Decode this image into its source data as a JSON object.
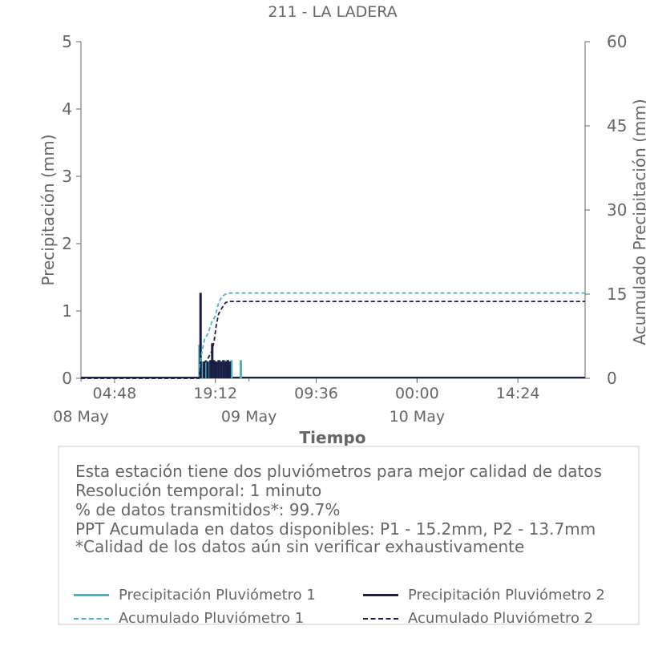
{
  "chart_data": {
    "type": "bar",
    "title": "211 - LA LADERA",
    "xlabel": "Tiempo",
    "ylabel_left": "Precipitación (mm)",
    "ylabel_right": "Acumulado Precipitación (mm)",
    "ylim_left": [
      0,
      5
    ],
    "ylim_right": [
      0,
      60
    ],
    "yticks_left": [
      "0",
      "1",
      "2",
      "3",
      "4",
      "5"
    ],
    "yticks_right": [
      "0",
      "15",
      "30",
      "45",
      "60"
    ],
    "x_range": [
      "2024-05-08T00:00",
      "2024-05-11T00:00"
    ],
    "xticks_time": [
      {
        "t": "2024-05-08T04:48",
        "label": "04:48"
      },
      {
        "t": "2024-05-08T19:12",
        "label": "19:12"
      },
      {
        "t": "2024-05-09T09:36",
        "label": "09:36"
      },
      {
        "t": "2024-05-10T00:00",
        "label": "00:00"
      },
      {
        "t": "2024-05-10T14:24",
        "label": "14:24"
      }
    ],
    "xticks_date": [
      {
        "t": "2024-05-08T00:00",
        "label": "08 May"
      },
      {
        "t": "2024-05-09T00:00",
        "label": "09 May"
      },
      {
        "t": "2024-05-10T00:00",
        "label": "10 May"
      }
    ],
    "series": [
      {
        "name": "Precipitación Pluviómetro 1",
        "kind": "bar",
        "color": "#4fb3bf",
        "points": [
          [
            "2024-05-08T16:55",
            0.5
          ],
          [
            "2024-05-08T17:20",
            0.25
          ],
          [
            "2024-05-08T17:50",
            0.27
          ],
          [
            "2024-05-08T18:10",
            0.25
          ],
          [
            "2024-05-08T18:35",
            0.27
          ],
          [
            "2024-05-08T19:00",
            0.27
          ],
          [
            "2024-05-08T19:25",
            0.25
          ],
          [
            "2024-05-08T19:50",
            0.27
          ],
          [
            "2024-05-08T20:15",
            0.25
          ],
          [
            "2024-05-08T20:40",
            0.27
          ],
          [
            "2024-05-08T21:05",
            0.25
          ],
          [
            "2024-05-08T21:30",
            0.27
          ],
          [
            "2024-05-08T22:50",
            0.27
          ]
        ]
      },
      {
        "name": "Precipitación Pluviómetro 2",
        "kind": "bar",
        "color": "#1b1f45",
        "points": [
          [
            "2024-05-08T17:05",
            1.27
          ],
          [
            "2024-05-08T17:35",
            0.25
          ],
          [
            "2024-05-08T18:05",
            0.25
          ],
          [
            "2024-05-08T18:30",
            0.27
          ],
          [
            "2024-05-08T18:45",
            0.52
          ],
          [
            "2024-05-08T19:00",
            0.27
          ],
          [
            "2024-05-08T19:20",
            0.25
          ],
          [
            "2024-05-08T19:40",
            0.27
          ],
          [
            "2024-05-08T20:00",
            0.25
          ],
          [
            "2024-05-08T20:20",
            0.27
          ],
          [
            "2024-05-08T20:40",
            0.25
          ],
          [
            "2024-05-08T21:00",
            0.27
          ],
          [
            "2024-05-08T21:15",
            0.25
          ]
        ]
      },
      {
        "name": "Acumulado Pluviómetro 1",
        "kind": "line",
        "dash": true,
        "axis": "right",
        "color": "#4fb3bf",
        "points": [
          [
            "2024-05-08T00:00",
            0
          ],
          [
            "2024-05-08T16:50",
            0
          ],
          [
            "2024-05-08T17:10",
            4
          ],
          [
            "2024-05-08T17:40",
            7
          ],
          [
            "2024-05-08T18:10",
            8
          ],
          [
            "2024-05-08T18:40",
            10
          ],
          [
            "2024-05-08T19:10",
            11
          ],
          [
            "2024-05-08T19:40",
            13.5
          ],
          [
            "2024-05-08T20:10",
            14.6
          ],
          [
            "2024-05-08T20:40",
            15.0
          ],
          [
            "2024-05-08T21:20",
            15.2
          ],
          [
            "2024-05-11T00:00",
            15.2
          ]
        ]
      },
      {
        "name": "Acumulado Pluviómetro 2",
        "kind": "line",
        "dash": true,
        "axis": "right",
        "color": "#1b1f45",
        "points": [
          [
            "2024-05-08T00:00",
            0
          ],
          [
            "2024-05-08T16:50",
            0
          ],
          [
            "2024-05-08T17:10",
            2.5
          ],
          [
            "2024-05-08T17:40",
            2.8
          ],
          [
            "2024-05-08T18:10",
            3.6
          ],
          [
            "2024-05-08T18:40",
            4.8
          ],
          [
            "2024-05-08T19:00",
            6.5
          ],
          [
            "2024-05-08T19:20",
            9.5
          ],
          [
            "2024-05-08T19:40",
            11.5
          ],
          [
            "2024-05-08T20:10",
            12.6
          ],
          [
            "2024-05-08T20:40",
            13.5
          ],
          [
            "2024-05-08T21:10",
            13.7
          ],
          [
            "2024-05-11T00:00",
            13.7
          ]
        ]
      }
    ],
    "legend_placement": "bottom"
  },
  "info": {
    "line1": "Esta estación tiene dos pluviómetros para mejor calidad de datos",
    "line2": "Resolución temporal: 1 minuto",
    "line3": "% de datos transmitidos*: 99.7%",
    "line4": "PPT Acumulada en datos disponibles: P1 - 15.2mm, P2 - 13.7mm",
    "line5": "*Calidad de los datos aún sin verificar exhaustivamente"
  },
  "legend": {
    "p1": "Precipitación Pluviómetro 1",
    "p2": "Precipitación Pluviómetro 2",
    "a1": "Acumulado Pluviómetro 1",
    "a2": "Acumulado Pluviómetro 2"
  },
  "colors": {
    "teal": "#4fb3bf",
    "navy": "#1b1f45",
    "text": "#666666"
  }
}
